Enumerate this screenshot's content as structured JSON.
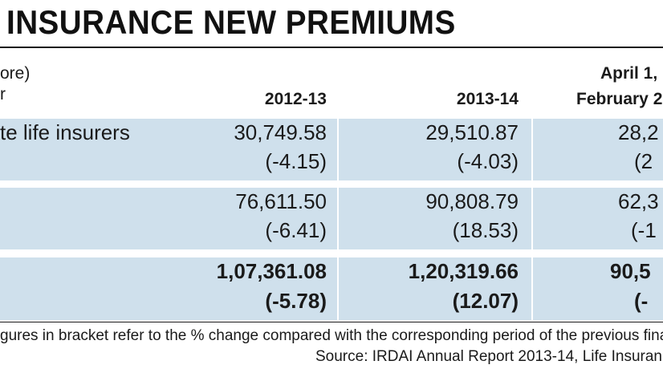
{
  "title": "INSURANCE NEW PREMIUMS",
  "unit_fragment": "ore)",
  "header_left_fragment": "r",
  "chart_data": {
    "type": "table",
    "columns": [
      "2012-13",
      "2013-14",
      "April 1,",
      "February 2"
    ],
    "col3_label_line1": "April 1,",
    "col3_label_line2": "February 2",
    "rows": [
      {
        "label": "te life insurers",
        "values": [
          "30,749.58",
          "29,510.87",
          "28,2"
        ],
        "changes": [
          "(-4.15)",
          "(-4.03)",
          "(2"
        ]
      },
      {
        "label": "",
        "values": [
          "76,611.50",
          "90,808.79",
          "62,3"
        ],
        "changes": [
          "(-6.41)",
          "(18.53)",
          "(-1"
        ]
      },
      {
        "label": "",
        "values": [
          "1,07,361.08",
          "1,20,319.66",
          "90,5"
        ],
        "changes": [
          "(-5.78)",
          "(12.07)",
          "(-"
        ]
      }
    ]
  },
  "footnote": "gures in bracket refer to the % change compared with the corresponding period of the previous fina",
  "source": "Source: IRDAI Annual Report 2013-14, Life Insuran"
}
